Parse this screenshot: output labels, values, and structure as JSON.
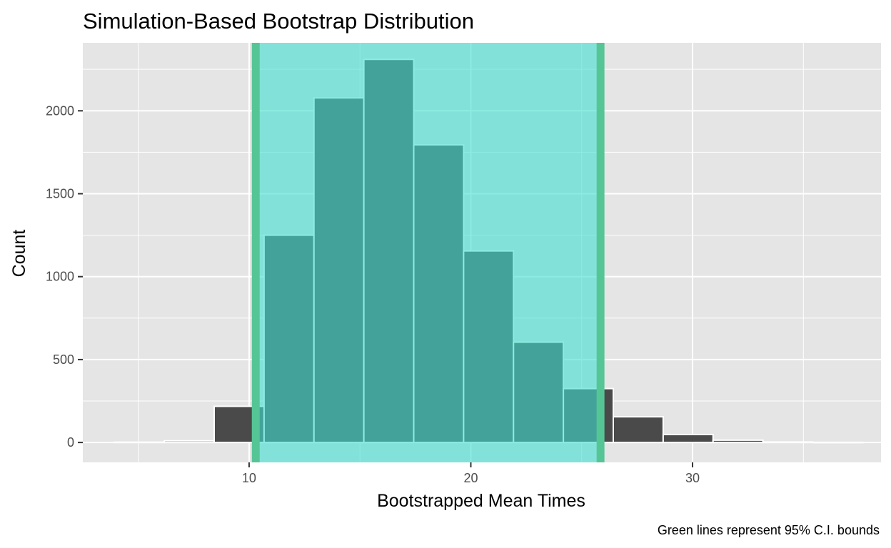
{
  "chart_data": {
    "type": "bar",
    "title": "Simulation-Based Bootstrap Distribution",
    "xlabel": "Bootstrapped Mean Times",
    "ylabel": "Count",
    "caption": "Green lines represent 95% C.I. bounds",
    "xlim": [
      2.5,
      38.5
    ],
    "ylim": [
      -120,
      2410
    ],
    "x_ticks": [
      10,
      20,
      30
    ],
    "y_ticks": [
      0,
      500,
      1000,
      1500,
      2000
    ],
    "grid": true,
    "bin_width": 2.25,
    "bins": [
      {
        "x": 5.05,
        "count": 2
      },
      {
        "x": 7.3,
        "count": 10
      },
      {
        "x": 9.55,
        "count": 218
      },
      {
        "x": 11.8,
        "count": 1250
      },
      {
        "x": 14.05,
        "count": 2078
      },
      {
        "x": 16.3,
        "count": 2310
      },
      {
        "x": 18.55,
        "count": 1795
      },
      {
        "x": 20.8,
        "count": 1155
      },
      {
        "x": 23.05,
        "count": 605
      },
      {
        "x": 25.3,
        "count": 325
      },
      {
        "x": 27.55,
        "count": 155
      },
      {
        "x": 29.8,
        "count": 48
      },
      {
        "x": 32.05,
        "count": 14
      },
      {
        "x": 34.3,
        "count": 3
      },
      {
        "x": 36.55,
        "count": 1
      }
    ],
    "ci_bounds": [
      10.3,
      25.85
    ],
    "colors": {
      "panel": "#e5e5e5",
      "grid": "#ffffff",
      "bar_fill": "#4a4a4a",
      "bar_outline": "#ffffff",
      "ci_fill": "#40e0d0",
      "ci_line": "#56c596"
    }
  }
}
